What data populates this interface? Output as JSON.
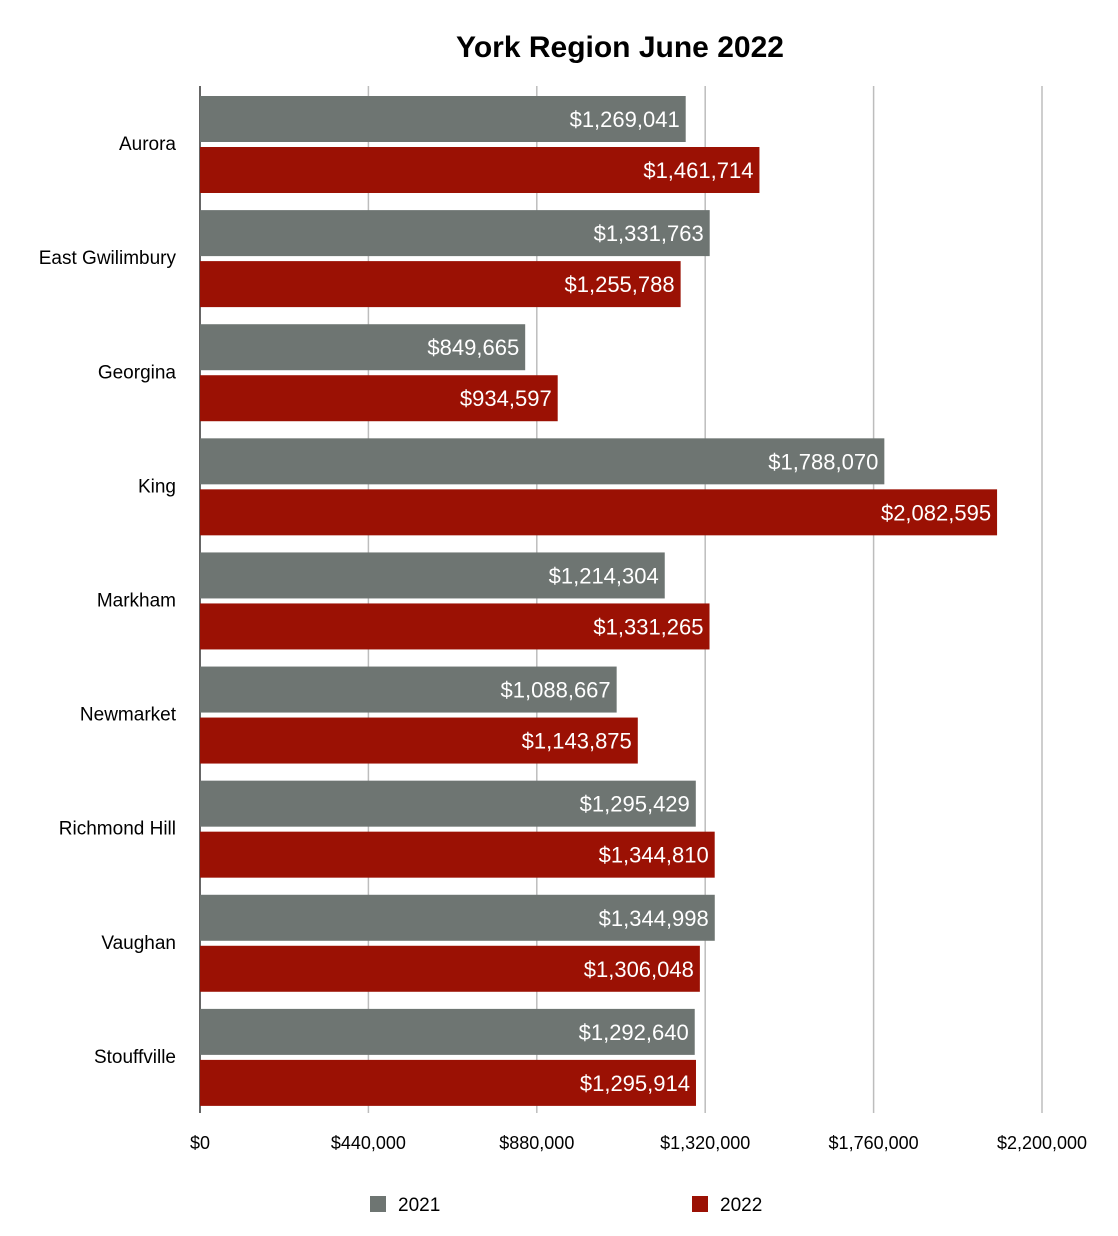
{
  "chart_data": {
    "type": "bar",
    "orientation": "horizontal",
    "title": "York Region June 2022",
    "xlabel": "",
    "ylabel": "",
    "categories": [
      "Aurora",
      "East Gwilimbury",
      "Georgina",
      "King",
      "Markham",
      "Newmarket",
      "Richmond Hill",
      "Vaughan",
      "Stouffville"
    ],
    "series": [
      {
        "name": "2021",
        "color": "#6e7572",
        "values": [
          1269041,
          1331763,
          849665,
          1788070,
          1214304,
          1088667,
          1295429,
          1344998,
          1292640
        ],
        "labels": [
          "$1,269,041",
          "$1,331,763",
          "$849,665",
          "$1,788,070",
          "$1,214,304",
          "$1,088,667",
          "$1,295,429",
          "$1,344,998",
          "$1,292,640"
        ]
      },
      {
        "name": "2022",
        "color": "#9b1104",
        "values": [
          1461714,
          1255788,
          934597,
          2082595,
          1331265,
          1143875,
          1344810,
          1306048,
          1295914
        ],
        "labels": [
          "$1,461,714",
          "$1,255,788",
          "$934,597",
          "$2,082,595",
          "$1,331,265",
          "$1,143,875",
          "$1,344,810",
          "$1,306,048",
          "$1,295,914"
        ]
      }
    ],
    "xlim": [
      0,
      2200000
    ],
    "xticks": [
      0,
      440000,
      880000,
      1320000,
      1760000,
      2200000
    ],
    "xtick_labels": [
      "$0",
      "$440,000",
      "$880,000",
      "$1,320,000",
      "$1,760,000",
      "$2,200,000"
    ],
    "grid": true,
    "legend_position": "bottom"
  }
}
